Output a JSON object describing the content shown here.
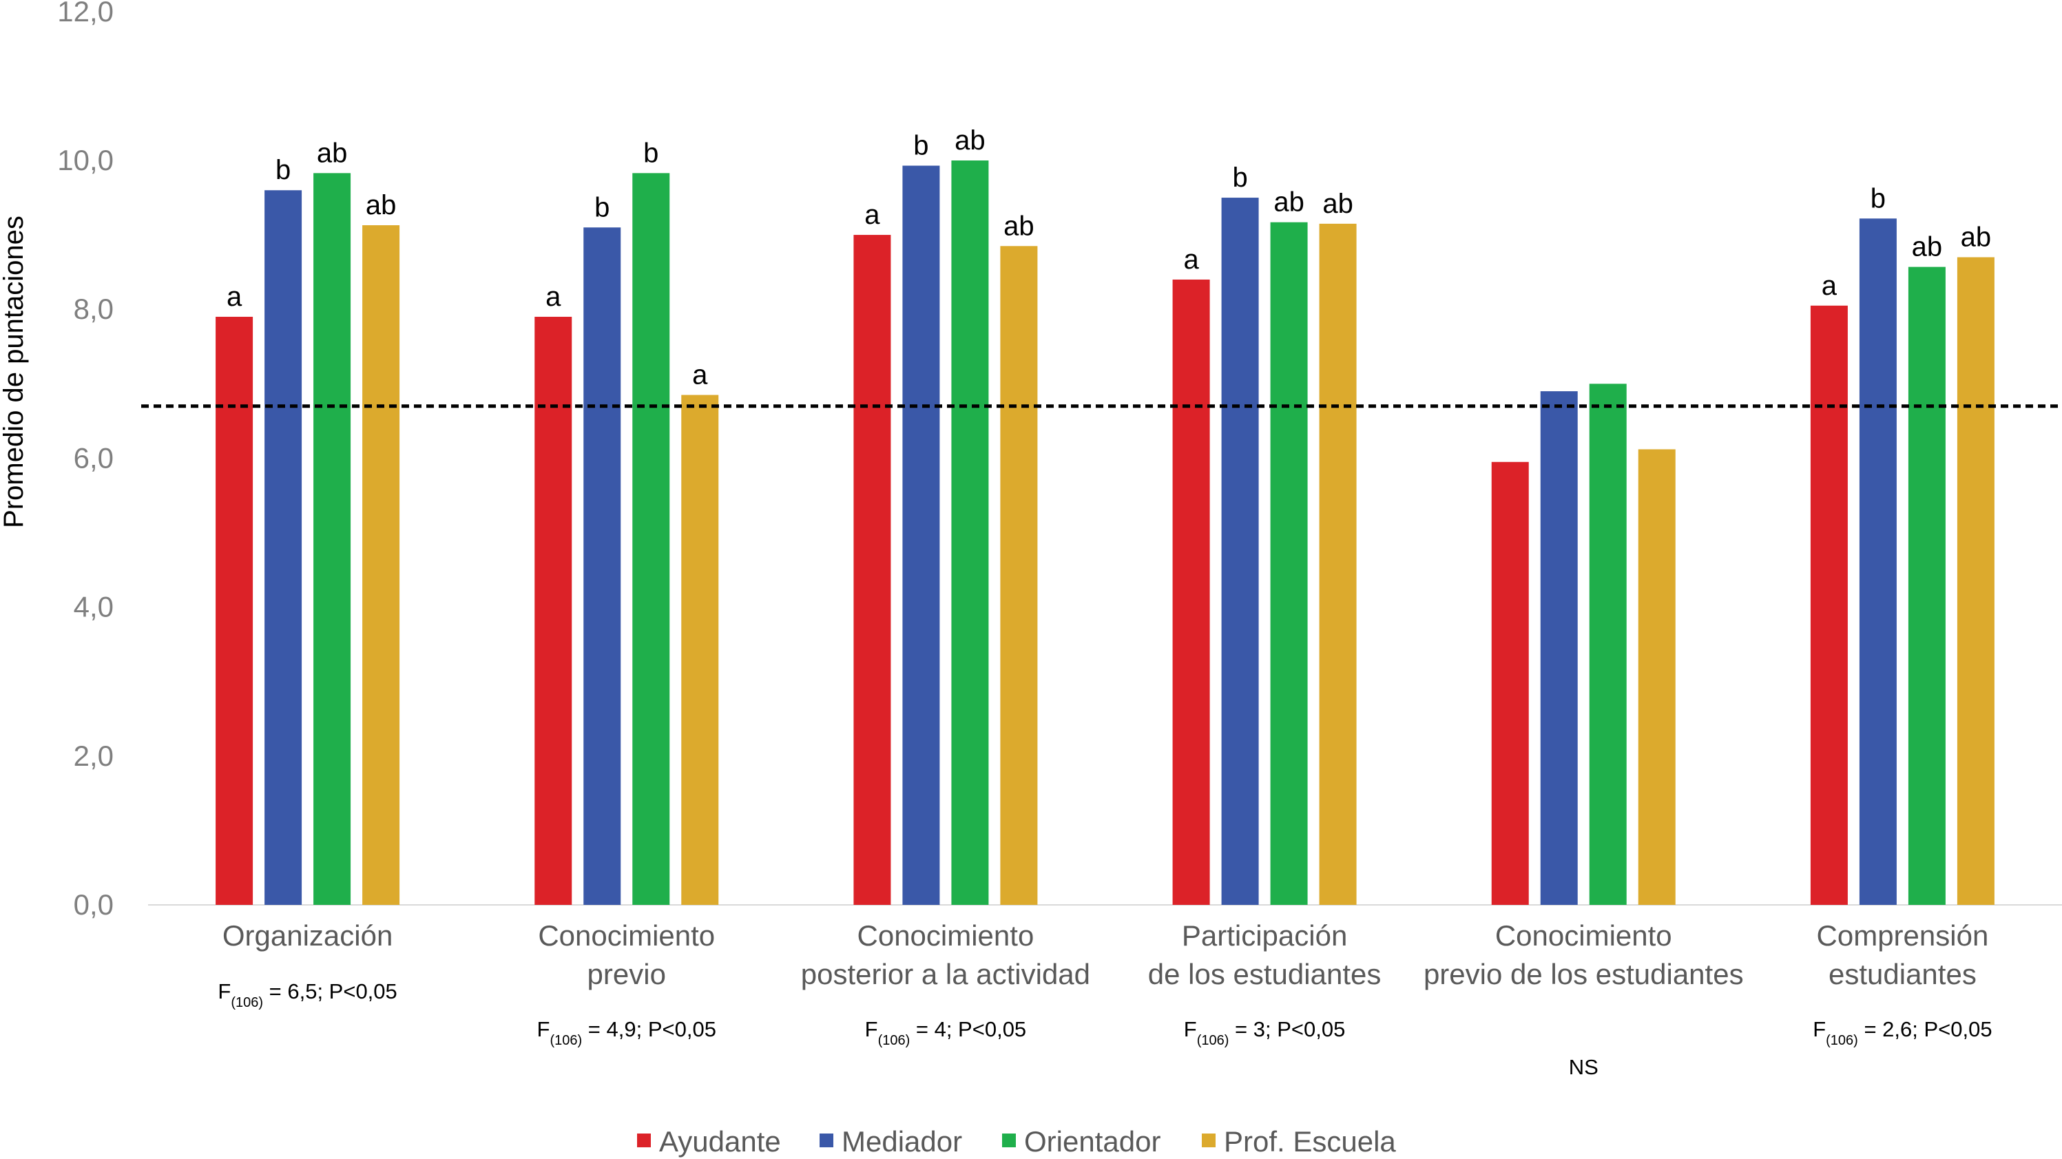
{
  "chart_data": {
    "type": "bar",
    "title": "",
    "xlabel": "",
    "ylabel": "Promedio de puntaciones",
    "ylim": [
      0,
      12
    ],
    "yticks": [
      "0,0",
      "2,0",
      "4,0",
      "6,0",
      "8,0",
      "10,0",
      "12,0"
    ],
    "reference_line": 6.7,
    "categories": [
      [
        "Organización"
      ],
      [
        "Conocimiento",
        "previo"
      ],
      [
        "Conocimiento",
        "posterior a la actividad"
      ],
      [
        "Participación",
        "de los estudiantes"
      ],
      [
        "Conocimiento",
        "previo de los estudiantes"
      ],
      [
        "Comprensión",
        "estudiantes"
      ]
    ],
    "series": [
      {
        "name": "Ayudante",
        "color": "#dc2228",
        "values": [
          7.9,
          7.9,
          9.0,
          8.4,
          5.95,
          8.05
        ],
        "labels": [
          "a",
          "a",
          "a",
          "a",
          "",
          "a"
        ]
      },
      {
        "name": "Mediador",
        "color": "#3a58a8",
        "values": [
          9.6,
          9.1,
          9.93,
          9.5,
          6.9,
          9.22
        ],
        "labels": [
          "b",
          "b",
          "b",
          "b",
          "",
          "b"
        ]
      },
      {
        "name": "Orientador",
        "color": "#1faf4b",
        "values": [
          9.83,
          9.83,
          10.0,
          9.17,
          7.0,
          8.57
        ],
        "labels": [
          "ab",
          "b",
          "ab",
          "ab",
          "",
          "ab"
        ]
      },
      {
        "name": "Prof. Escuela",
        "color": "#dcaa2d",
        "values": [
          9.13,
          6.85,
          8.85,
          9.15,
          6.12,
          8.7
        ],
        "labels": [
          "ab",
          "a",
          "ab",
          "ab",
          "",
          "ab"
        ]
      }
    ],
    "annotations": [
      {
        "main": "F",
        "sub": "(106)",
        "rest": " = 6,5; P<0,05"
      },
      {
        "main": "F",
        "sub": "(106)",
        "rest": " = 4,9; P<0,05"
      },
      {
        "main": "F",
        "sub": "(106)",
        "rest": " = 4; P<0,05"
      },
      {
        "main": "F",
        "sub": "(106)",
        "rest": " = 3; P<0,05"
      },
      {
        "main": "NS",
        "sub": "",
        "rest": ""
      },
      {
        "main": "F",
        "sub": "(106)",
        "rest": " = 2,6; P<0,05"
      }
    ],
    "legend_position": "bottom"
  }
}
